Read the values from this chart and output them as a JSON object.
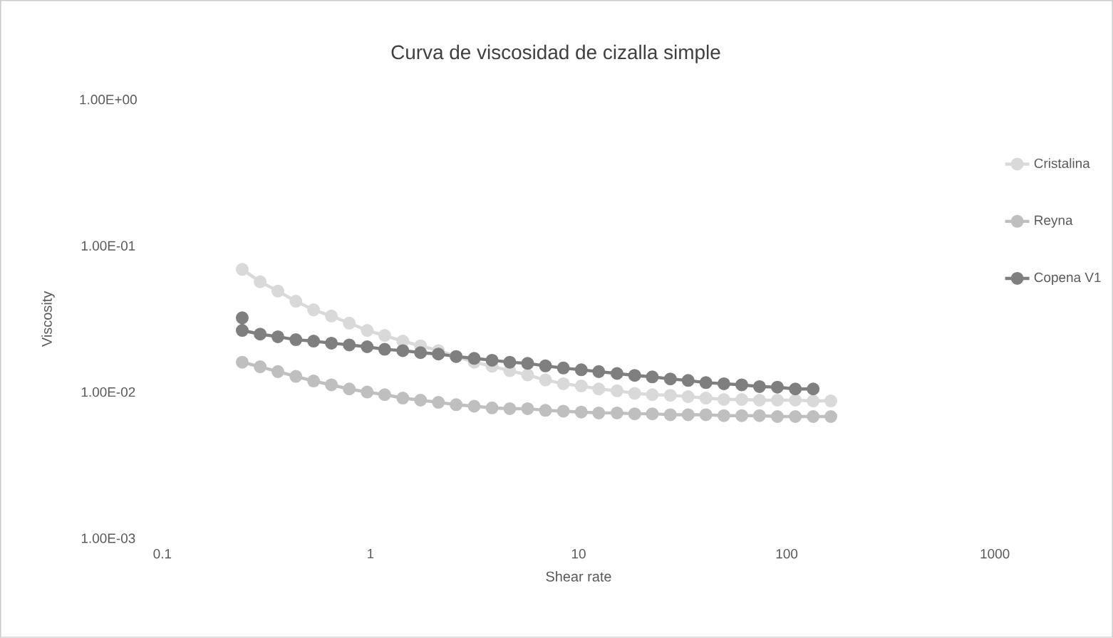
{
  "chart_data": {
    "type": "line",
    "title": "Curva de viscosidad de cizalla simple",
    "xlabel": "Shear rate",
    "ylabel": "Viscosity",
    "log": "xy",
    "grid": false,
    "legend": "right",
    "marker": "circle",
    "line_style": "solid",
    "xlim": [
      0.1,
      1000
    ],
    "xticks": [
      0.1,
      1,
      10,
      100,
      1000
    ],
    "ylim": [
      0.001,
      1
    ],
    "yticks": [
      {
        "value": 0.001,
        "label": "1.00E-03"
      },
      {
        "value": 0.01,
        "label": "1.00E-02"
      },
      {
        "value": 0.1,
        "label": "1.00E-01"
      },
      {
        "value": 1,
        "label": "1.00E+00"
      }
    ],
    "series": [
      {
        "name": "Cristalina",
        "color": "#d9d9d9",
        "x": [
          0.242,
          0.295,
          0.359,
          0.438,
          0.533,
          0.649,
          0.791,
          0.964,
          1.17,
          1.43,
          1.74,
          2.12,
          2.58,
          3.15,
          3.84,
          4.67,
          5.69,
          6.93,
          8.45,
          10.3,
          12.5,
          15.3,
          18.6,
          22.6,
          27.6,
          33.6,
          40.9,
          49.9,
          60.8,
          74.0,
          90.2,
          110,
          134,
          163
        ],
        "values": [
          0.069,
          0.0568,
          0.049,
          0.0418,
          0.0365,
          0.0331,
          0.0296,
          0.0264,
          0.0244,
          0.0223,
          0.0207,
          0.0192,
          0.0175,
          0.016,
          0.015,
          0.014,
          0.0131,
          0.0121,
          0.0114,
          0.011,
          0.0105,
          0.0102,
          0.0098,
          0.0096,
          0.0095,
          0.0093,
          0.0091,
          0.0089,
          0.0089,
          0.0088,
          0.0088,
          0.0088,
          0.0087,
          0.0087
        ]
      },
      {
        "name": "Reyna",
        "color": "#bfbfbf",
        "x": [
          0.242,
          0.295,
          0.359,
          0.438,
          0.533,
          0.649,
          0.791,
          0.964,
          1.17,
          1.43,
          1.74,
          2.12,
          2.58,
          3.15,
          3.84,
          4.67,
          5.69,
          6.93,
          8.45,
          10.3,
          12.5,
          15.3,
          18.6,
          22.6,
          27.6,
          33.6,
          40.9,
          49.9,
          60.8,
          74.0,
          90.2,
          110,
          134,
          163
        ],
        "values": [
          0.016,
          0.0149,
          0.0138,
          0.0128,
          0.0119,
          0.0112,
          0.0105,
          0.01,
          0.0096,
          0.0091,
          0.0088,
          0.0085,
          0.0082,
          0.008,
          0.0078,
          0.0077,
          0.0077,
          0.0075,
          0.0074,
          0.0073,
          0.0072,
          0.0072,
          0.0071,
          0.0071,
          0.007,
          0.007,
          0.007,
          0.0069,
          0.0069,
          0.0069,
          0.0068,
          0.0068,
          0.0068,
          0.0068
        ]
      },
      {
        "name": "Copena V1",
        "color": "#7f7f7f",
        "x": [
          0.242,
          0.242,
          0.295,
          0.359,
          0.438,
          0.533,
          0.649,
          0.791,
          0.964,
          1.17,
          1.43,
          1.74,
          2.12,
          2.58,
          3.15,
          3.84,
          4.67,
          5.69,
          6.93,
          8.45,
          10.3,
          12.5,
          15.3,
          18.6,
          22.6,
          27.6,
          33.6,
          40.9,
          49.9,
          60.8,
          74.0,
          90.2,
          110,
          134
        ],
        "values": [
          0.0322,
          0.0264,
          0.0249,
          0.0239,
          0.0228,
          0.0223,
          0.0216,
          0.021,
          0.0204,
          0.0196,
          0.0192,
          0.0186,
          0.0182,
          0.0175,
          0.017,
          0.0165,
          0.016,
          0.0157,
          0.0151,
          0.0146,
          0.0142,
          0.0138,
          0.0134,
          0.013,
          0.0127,
          0.0123,
          0.012,
          0.0116,
          0.0114,
          0.0112,
          0.0109,
          0.0108,
          0.0105,
          0.0105
        ]
      }
    ]
  }
}
